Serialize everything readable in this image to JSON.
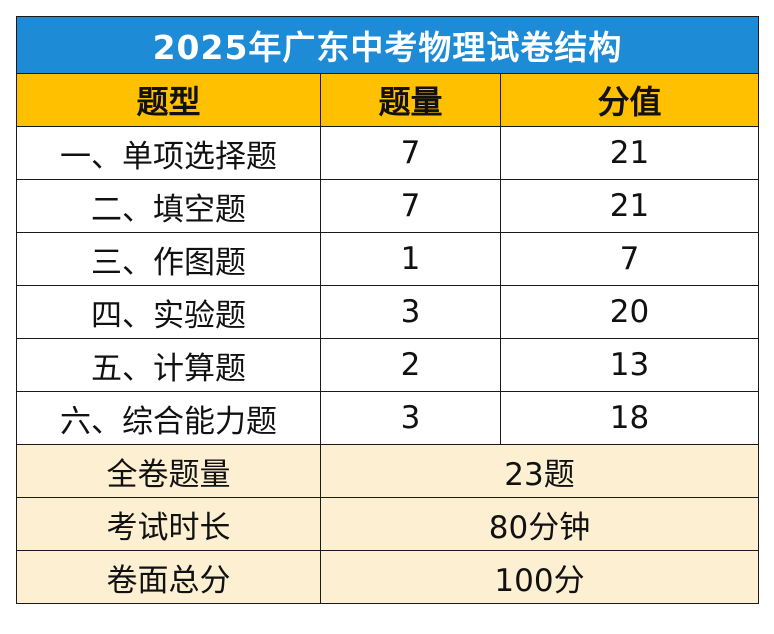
{
  "table": {
    "title": "2025年广东中考物理试卷结构",
    "headers": [
      "题型",
      "题量",
      "分值"
    ],
    "rows": [
      {
        "type": "一、单项选择题",
        "count": "7",
        "score": "21"
      },
      {
        "type": "二、填空题",
        "count": "7",
        "score": "21"
      },
      {
        "type": "三、作图题",
        "count": "1",
        "score": "7"
      },
      {
        "type": "四、实验题",
        "count": "3",
        "score": "20"
      },
      {
        "type": "五、计算题",
        "count": "2",
        "score": "13"
      },
      {
        "type": "六、综合能力题",
        "count": "3",
        "score": "18"
      }
    ],
    "summary": [
      {
        "label": "全卷题量",
        "value": "23题"
      },
      {
        "label": "考试时长",
        "value": "80分钟"
      },
      {
        "label": "卷面总分",
        "value": "100分"
      }
    ],
    "colors": {
      "title_bg": "#1e8bd6",
      "header_bg": "#ffc000",
      "summary_bg": "#fdf0d2",
      "border": "#1a1a1a"
    }
  }
}
